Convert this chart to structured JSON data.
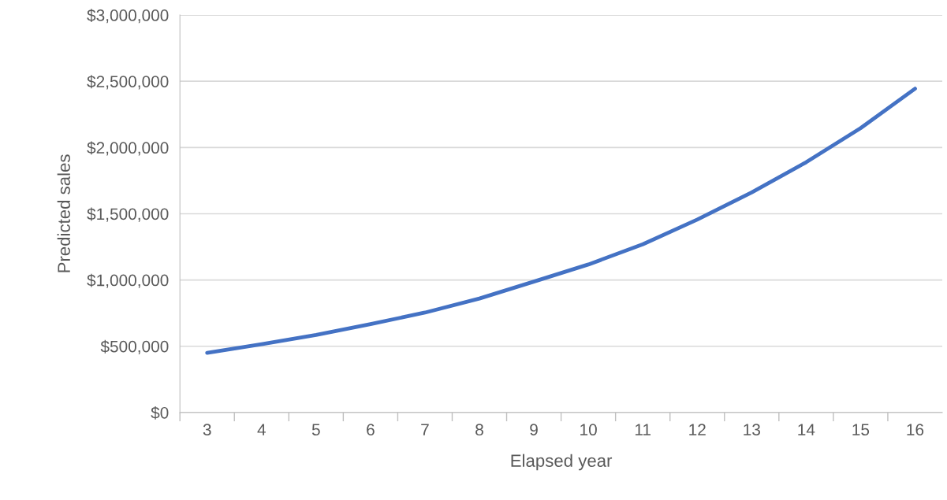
{
  "chart_data": {
    "type": "line",
    "xlabel": "Elapsed year",
    "ylabel": "Predicted sales",
    "categories": [
      "3",
      "4",
      "5",
      "6",
      "7",
      "8",
      "9",
      "10",
      "11",
      "12",
      "13",
      "14",
      "15",
      "16"
    ],
    "series": [
      {
        "color": "#4472c4",
        "values": [
          450000,
          515000,
          585000,
          667000,
          754000,
          860000,
          988000,
          1117000,
          1269000,
          1456000,
          1661000,
          1889000,
          2146000,
          2444000
        ]
      }
    ],
    "ylim": [
      0,
      3000000
    ],
    "yticks": [
      {
        "value": 0,
        "label": "$0"
      },
      {
        "value": 500000,
        "label": "$500,000"
      },
      {
        "value": 1000000,
        "label": "$1,000,000"
      },
      {
        "value": 1500000,
        "label": "$1,500,000"
      },
      {
        "value": 2000000,
        "label": "$2,000,000"
      },
      {
        "value": 2500000,
        "label": "$2,500,000"
      },
      {
        "value": 3000000,
        "label": "$3,000,000"
      }
    ],
    "grid": "y",
    "marker": "none",
    "line_style": "solid"
  }
}
